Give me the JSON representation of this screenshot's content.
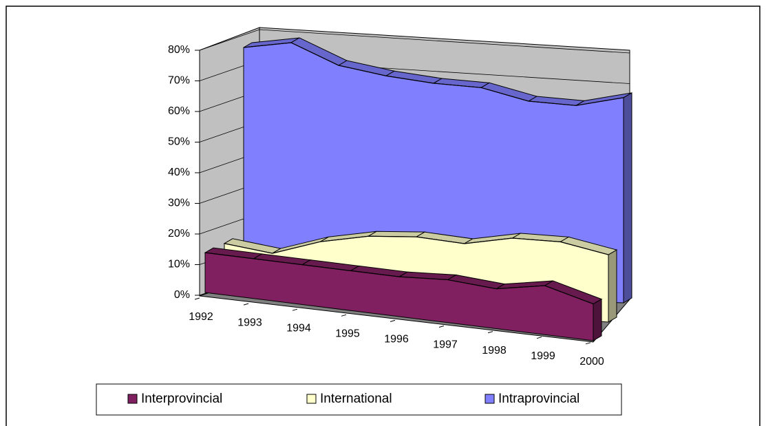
{
  "chart_data": {
    "type": "area3d",
    "categories": [
      "1992",
      "1993",
      "1994",
      "1995",
      "1996",
      "1997",
      "1998",
      "1999",
      "2000"
    ],
    "series": [
      {
        "name": "Interprovincial",
        "color": "#802060",
        "values": [
          13,
          13,
          13,
          13,
          13,
          14,
          13,
          16,
          12
        ]
      },
      {
        "name": "International",
        "color": "#ffffcc",
        "values": [
          16,
          14,
          19,
          22,
          23,
          22,
          25,
          25,
          22
        ]
      },
      {
        "name": "Intraprovincial",
        "color": "#8080ff",
        "values": [
          80,
          82,
          75,
          72,
          70,
          69,
          65,
          64,
          67
        ]
      }
    ],
    "ylim": [
      0,
      80
    ],
    "yticks": [
      {
        "value": 0,
        "label": "0%"
      },
      {
        "value": 10,
        "label": "10%"
      },
      {
        "value": 20,
        "label": "20%"
      },
      {
        "value": 30,
        "label": "30%"
      },
      {
        "value": 40,
        "label": "40%"
      },
      {
        "value": 50,
        "label": "50%"
      },
      {
        "value": 60,
        "label": "60%"
      },
      {
        "value": 70,
        "label": "70%"
      },
      {
        "value": 80,
        "label": "80%"
      }
    ],
    "grid": true,
    "legend": "bottom"
  }
}
